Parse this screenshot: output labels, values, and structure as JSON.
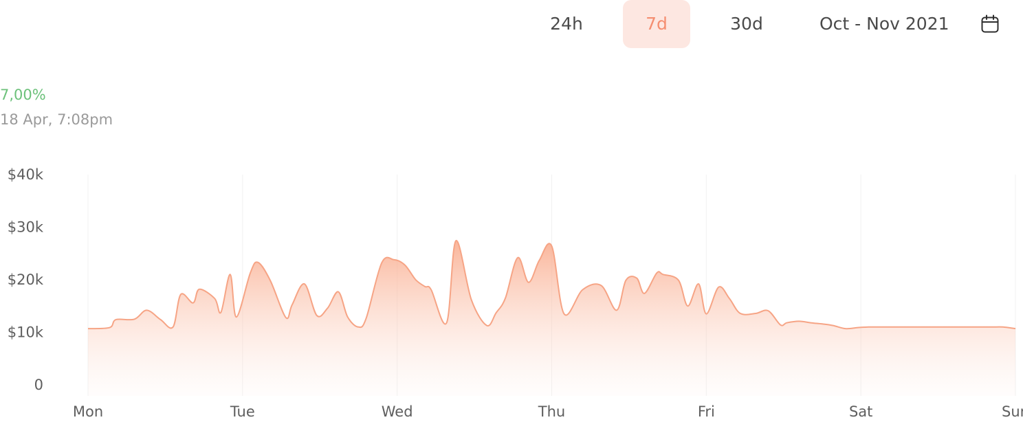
{
  "range_tabs": [
    {
      "label": "24h",
      "active": false
    },
    {
      "label": "7d",
      "active": true
    },
    {
      "label": "30d",
      "active": false
    }
  ],
  "date_range": {
    "label": "Oct - Nov 2021",
    "icon": "calendar-icon"
  },
  "summary": {
    "change": "7,00%",
    "timestamp": "18 Apr, 7:08pm"
  },
  "colors": {
    "accent": "#f58e70",
    "accent_bg": "#fde7e1",
    "positive": "#6cc17a",
    "line": "#f6a485",
    "grid": "#f1f1f1"
  },
  "chart_data": {
    "type": "area",
    "x_labels": [
      "Mon",
      "Tue",
      "Wed",
      "Thu",
      "Fri",
      "Sat",
      "Sun"
    ],
    "y_ticks": [
      "0",
      "$10k",
      "$20k",
      "$30k",
      "$40k"
    ],
    "ylim": [
      0,
      40000
    ],
    "xlim": [
      0,
      6
    ],
    "grid": "vertical",
    "series": [
      {
        "x": [
          0,
          0.14,
          0.18,
          0.3,
          0.38,
          0.47,
          0.55,
          0.6,
          0.68,
          0.72,
          0.82,
          0.86,
          0.92,
          0.96,
          1.05,
          1.1,
          1.18,
          1.28,
          1.32,
          1.4,
          1.48,
          1.55,
          1.62,
          1.68,
          1.75,
          1.8,
          1.9,
          1.98,
          2.05,
          2.12,
          2.18,
          2.22,
          2.32,
          2.38,
          2.48,
          2.58,
          2.64,
          2.7,
          2.78,
          2.85,
          2.92,
          3.0,
          3.08,
          3.2,
          3.32,
          3.42,
          3.48,
          3.55,
          3.6,
          3.68,
          3.72,
          3.82,
          3.88,
          3.95,
          4.0,
          4.08,
          4.15,
          4.22,
          4.32,
          4.4,
          4.48,
          4.52,
          4.6,
          4.68,
          4.75,
          4.82,
          4.9,
          4.98,
          5.05,
          5.12,
          5.2,
          5.28,
          5.35,
          5.42,
          5.48,
          5.6,
          5.72,
          5.78,
          5.85,
          5.92,
          6.0
        ],
        "values": [
          10700,
          10900,
          12400,
          12500,
          14200,
          12400,
          11000,
          17200,
          15600,
          18200,
          16400,
          13800,
          21000,
          12900,
          21300,
          23300,
          19800,
          12800,
          15200,
          19200,
          13200,
          14600,
          17700,
          12900,
          11000,
          12700,
          23200,
          23800,
          22800,
          20000,
          18700,
          18100,
          11800,
          27400,
          16200,
          11300,
          13700,
          16500,
          24200,
          19500,
          23700,
          26400,
          13500,
          18100,
          18900,
          14200,
          19900,
          20300,
          17400,
          21300,
          21000,
          19900,
          15000,
          19200,
          13500,
          18600,
          16400,
          13600,
          13600,
          14100,
          11400,
          11800,
          12100,
          11800,
          11600,
          11300,
          10700,
          10900,
          11000,
          11000,
          11000,
          11000,
          11000,
          11000,
          11000,
          11000,
          11000,
          11000,
          11000,
          11000,
          10700
        ]
      }
    ]
  }
}
